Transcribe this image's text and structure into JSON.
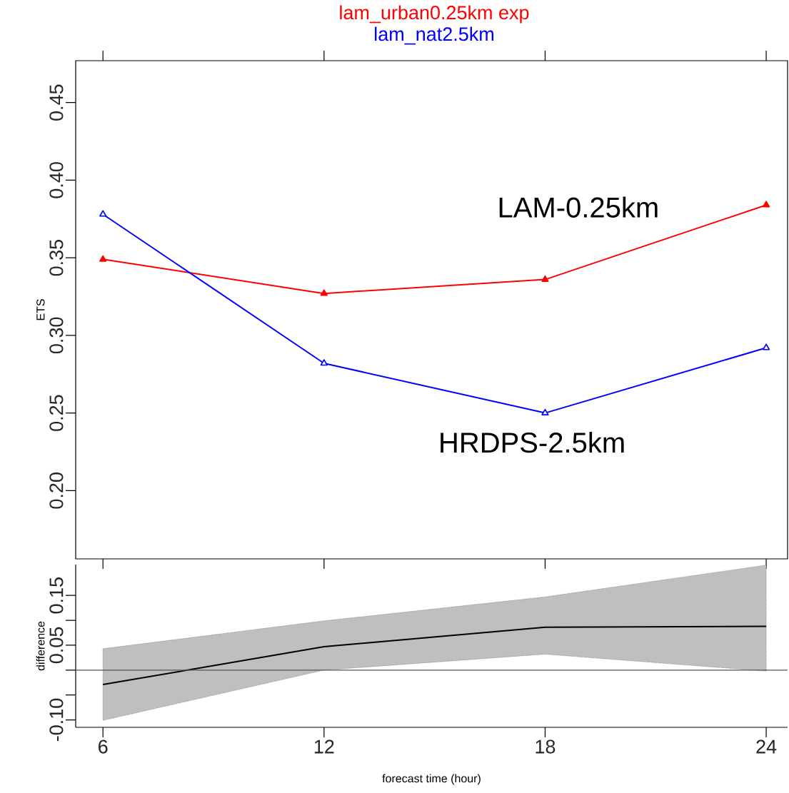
{
  "chart_data": [
    {
      "type": "line",
      "ylabel": "ETS",
      "x": [
        6,
        12,
        18,
        24
      ],
      "xlim": [
        5.26,
        24.58
      ],
      "xticks": [
        6,
        12,
        18,
        24
      ],
      "ylim": [
        0.156,
        0.477
      ],
      "yticks": [
        {
          "value": 0.2,
          "label": "0.20"
        },
        0.25,
        {
          "value": 0.3,
          "label": "0.30"
        },
        0.35,
        {
          "value": 0.4,
          "label": "0.40"
        },
        0.45
      ],
      "tick_labels": "y",
      "marker": "triangle",
      "legend": "top",
      "series": [
        {
          "name": "lam_urban0.25km exp",
          "color": "#ff0000",
          "values": [
            0.349,
            0.327,
            0.336,
            0.384
          ]
        },
        {
          "name": "lam_nat2.5km",
          "color": "#0000ff",
          "values": [
            0.378,
            0.282,
            0.25,
            0.292
          ]
        }
      ],
      "annotations": [
        "LAM-0.25km",
        "HRDPS-2.5km"
      ]
    },
    {
      "type": "line",
      "xlabel": "forecast time (hour)",
      "ylabel": "difference",
      "x": [
        6,
        12,
        18,
        24
      ],
      "xlim": [
        5.26,
        24.58
      ],
      "xticks": [
        6,
        12,
        18,
        24
      ],
      "ylim": [
        -0.115,
        0.212
      ],
      "yticks": [
        {
          "value": -0.1,
          "label": "-0.10"
        },
        {
          "value": -0.05,
          "label": null
        },
        {
          "value": 0,
          "label": null
        },
        0.05,
        {
          "value": 0.1,
          "label": null
        },
        0.15
      ],
      "series": [
        {
          "color": "#000000",
          "values": [
            -0.029,
            0.047,
            0.086,
            0.088
          ],
          "lower": [
            -0.101,
            0.0,
            0.032,
            -0.002
          ],
          "upper": [
            0.043,
            0.099,
            0.147,
            0.211
          ]
        }
      ],
      "ref_lines": [
        {
          "axis": "y",
          "value": 0,
          "color": "#555555"
        }
      ]
    }
  ]
}
